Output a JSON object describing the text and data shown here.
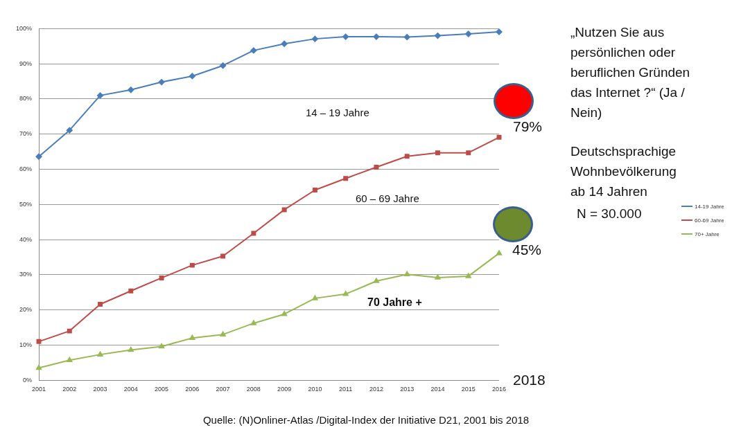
{
  "chart_data": {
    "type": "line",
    "title": "„Nutzen Sie aus persönlichen oder beruflichen Gründen das Internet ?“ (Ja / Nein)",
    "subtitle": "Deutschsprachige Wohnbevölkerung ab 14 Jahren",
    "categories": [
      "2001",
      "2002",
      "2003",
      "2004",
      "2005",
      "2006",
      "2007",
      "2008",
      "2009",
      "2010",
      "2011",
      "2012",
      "2013",
      "2014",
      "2015",
      "2016"
    ],
    "series": [
      {
        "name": "14-19 Jahre",
        "color": "#4a7ebb",
        "marker": "diamond",
        "values": [
          63.6,
          71.1,
          81,
          82.6,
          84.8,
          86.5,
          89.5,
          93.8,
          95.7,
          97.1,
          97.7,
          97.7,
          97.6,
          98,
          98.5,
          99.1
        ]
      },
      {
        "name": "60-69 Jahre",
        "color": "#be4b48",
        "marker": "square",
        "values": [
          11,
          14,
          21.6,
          25.4,
          29.1,
          32.7,
          35.3,
          41.8,
          48.5,
          54.1,
          57.4,
          60.6,
          63.7,
          64.7,
          64.7,
          69.1
        ]
      },
      {
        "name": "70+ Jahre",
        "color": "#98b954",
        "marker": "triangle",
        "values": [
          3.5,
          5.7,
          7.3,
          8.6,
          9.6,
          12,
          13,
          16.2,
          18.8,
          23.3,
          24.5,
          28.2,
          30.1,
          29.2,
          29.6,
          36.1
        ]
      }
    ],
    "ylim": [
      0,
      100
    ],
    "yticks": [
      {
        "value": 0,
        "label": "0%"
      },
      {
        "value": 10,
        "label": "10%"
      },
      {
        "value": 20,
        "label": "20%"
      },
      {
        "value": 30,
        "label": "30%"
      },
      {
        "value": 40,
        "label": "40%"
      },
      {
        "value": 50,
        "label": "50%"
      },
      {
        "value": 60,
        "label": "60%"
      },
      {
        "value": 70,
        "label": "70%"
      },
      {
        "value": 80,
        "label": "80%"
      },
      {
        "value": 90,
        "label": "90%"
      },
      {
        "value": 100,
        "label": "100%"
      }
    ],
    "grid": "y",
    "legend": "right",
    "line_style": "solid",
    "annotations": [
      "14 – 19 Jahre",
      "60 – 69 Jahre",
      "70 Jahre +",
      "79%",
      "45%",
      "2018",
      "N = 30.000",
      "Quelle: (N)Onliner-Atlas /Digital-Index der Initiative D21, 2001 bis 2018"
    ]
  }
}
